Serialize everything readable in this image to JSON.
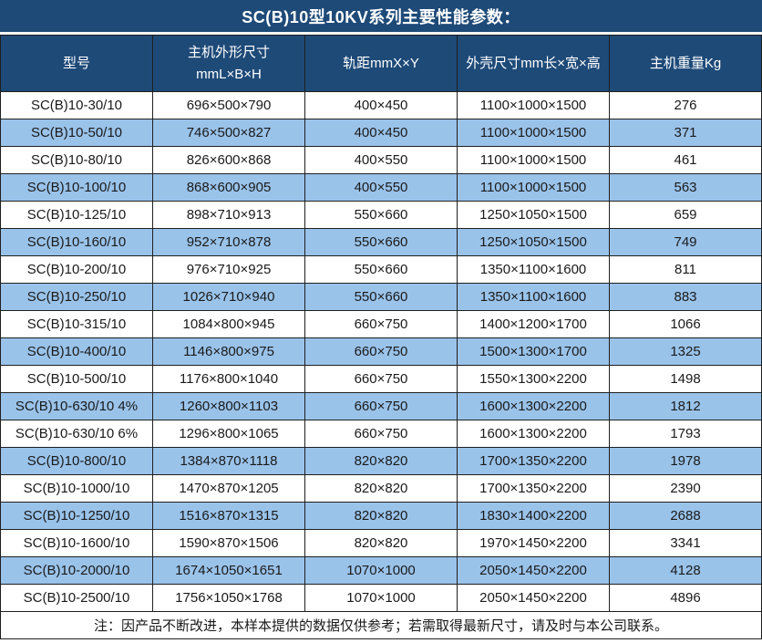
{
  "title": "SC(B)10型10KV系列主要性能参数：",
  "header": {
    "col1": "型号",
    "col2_line1": "主机外形尺寸",
    "col2_line2": "mmL×B×H",
    "col3": "轨距mmX×Y",
    "col4": "外壳尺寸mm长×宽×高",
    "col5": "主机重量Kg"
  },
  "table": {
    "rows": [
      [
        "SC(B)10-30/10",
        "696×500×790",
        "400×450",
        "1100×1000×1500",
        "276"
      ],
      [
        "SC(B)10-50/10",
        "746×500×827",
        "400×450",
        "1100×1000×1500",
        "371"
      ],
      [
        "SC(B)10-80/10",
        "826×600×868",
        "400×550",
        "1100×1000×1500",
        "461"
      ],
      [
        "SC(B)10-100/10",
        "868×600×905",
        "400×550",
        "1100×1000×1500",
        "563"
      ],
      [
        "SC(B)10-125/10",
        "898×710×913",
        "550×660",
        "1250×1050×1500",
        "659"
      ],
      [
        "SC(B)10-160/10",
        "952×710×878",
        "550×660",
        "1250×1050×1500",
        "749"
      ],
      [
        "SC(B)10-200/10",
        "976×710×925",
        "550×660",
        "1350×1100×1600",
        "811"
      ],
      [
        "SC(B)10-250/10",
        "1026×710×940",
        "550×660",
        "1350×1100×1600",
        "883"
      ],
      [
        "SC(B)10-315/10",
        "1084×800×945",
        "660×750",
        "1400×1200×1700",
        "1066"
      ],
      [
        "SC(B)10-400/10",
        "1146×800×975",
        "660×750",
        "1500×1300×1700",
        "1325"
      ],
      [
        "SC(B)10-500/10",
        "1176×800×1040",
        "660×750",
        "1550×1300×2200",
        "1498"
      ],
      [
        "SC(B)10-630/10 4%",
        "1260×800×1103",
        "660×750",
        "1600×1300×2200",
        "1812"
      ],
      [
        "SC(B)10-630/10 6%",
        "1296×800×1065",
        "660×750",
        "1600×1300×2200",
        "1793"
      ],
      [
        "SC(B)10-800/10",
        "1384×870×1118",
        "820×820",
        "1700×1350×2200",
        "1978"
      ],
      [
        "SC(B)10-1000/10",
        "1470×870×1205",
        "820×820",
        "1700×1350×2200",
        "2390"
      ],
      [
        "SC(B)10-1250/10",
        "1516×870×1315",
        "820×820",
        "1830×1400×2200",
        "2688"
      ],
      [
        "SC(B)10-1600/10",
        "1590×870×1506",
        "820×820",
        "1970×1450×2200",
        "3341"
      ],
      [
        "SC(B)10-2000/10",
        "1674×1050×1651",
        "1070×1000",
        "2050×1450×2200",
        "4128"
      ],
      [
        "SC(B)10-2500/10",
        "1756×1050×1768",
        "1070×1000",
        "2050×1450×2200",
        "4896"
      ]
    ]
  },
  "note": "注：因产品不断改进，本样本提供的数据仅供参考；若需取得最新尺寸，请及时与本公司联系。",
  "colors": {
    "header_bg": "#1e4a78",
    "row_alt_bg": "#9ac3ea",
    "border": "#1f1f1f",
    "header_text": "#ffffff",
    "body_text": "#1a1a1a"
  }
}
